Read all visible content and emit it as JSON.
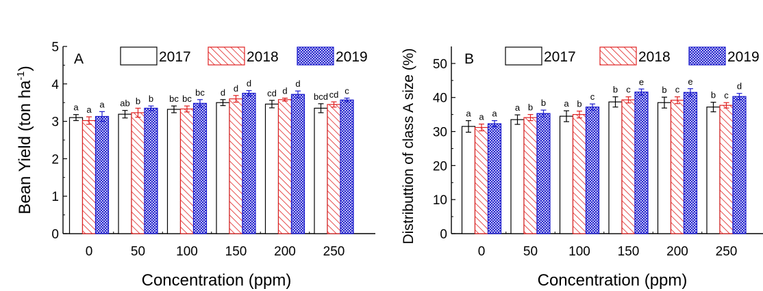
{
  "chart_data": [
    {
      "type": "bar",
      "panel_label": "A",
      "xlabel": "Concentration (ppm)",
      "ylabel": "Bean Yield (ton ha",
      "ylabel_sup": "-1",
      "ylabel_tail": ")",
      "categories": [
        "0",
        "50",
        "100",
        "150",
        "200",
        "250"
      ],
      "ylim": [
        0,
        5
      ],
      "yticks": [
        "0",
        "1",
        "2",
        "3",
        "4",
        "5"
      ],
      "legend_position": "top",
      "series": [
        {
          "name": "2017",
          "values": [
            3.1,
            3.19,
            3.32,
            3.5,
            3.46,
            3.35
          ],
          "errors": [
            0.08,
            0.1,
            0.09,
            0.08,
            0.1,
            0.12
          ],
          "letters": [
            "a",
            "ab",
            "bc",
            "d",
            "cd",
            "bcd"
          ]
        },
        {
          "name": "2018",
          "values": [
            3.02,
            3.23,
            3.33,
            3.6,
            3.58,
            3.45
          ],
          "errors": [
            0.1,
            0.12,
            0.08,
            0.09,
            0.04,
            0.07
          ],
          "letters": [
            "a",
            "b",
            "bc",
            "d",
            "d",
            "cd"
          ]
        },
        {
          "name": "2019",
          "values": [
            3.13,
            3.35,
            3.48,
            3.75,
            3.72,
            3.57
          ],
          "errors": [
            0.13,
            0.06,
            0.1,
            0.07,
            0.09,
            0.05
          ],
          "letters": [
            "a",
            "b",
            "bc",
            "d",
            "d",
            "c"
          ]
        }
      ]
    },
    {
      "type": "bar",
      "panel_label": "B",
      "xlabel": "Concentration (ppm)",
      "ylabel": "Distributtion of class A size (%)",
      "categories": [
        "0",
        "50",
        "100",
        "150",
        "200",
        "250"
      ],
      "ylim": [
        0,
        55
      ],
      "yticks": [
        "0",
        "10",
        "20",
        "30",
        "40",
        "50"
      ],
      "legend_position": "top",
      "series": [
        {
          "name": "2017",
          "values": [
            31.5,
            33.5,
            34.5,
            38.7,
            38.5,
            37.2
          ],
          "errors": [
            1.7,
            1.4,
            1.6,
            1.5,
            1.6,
            1.4
          ],
          "letters": [
            "a",
            "a",
            "a",
            "b",
            "b",
            "b"
          ]
        },
        {
          "name": "2018",
          "values": [
            31.2,
            34.1,
            35.0,
            39.3,
            39.2,
            37.7
          ],
          "errors": [
            1.0,
            0.9,
            1.0,
            0.9,
            1.0,
            0.8
          ],
          "letters": [
            "a",
            "b",
            "b",
            "c",
            "c",
            "c"
          ]
        },
        {
          "name": "2019",
          "values": [
            32.3,
            35.3,
            37.2,
            41.6,
            41.5,
            40.3
          ],
          "errors": [
            0.9,
            1.0,
            0.9,
            0.9,
            1.1,
            0.9
          ],
          "letters": [
            "a",
            "b",
            "c",
            "e",
            "e",
            "d"
          ]
        }
      ]
    }
  ],
  "colors": {
    "2017": "#000000",
    "2018": "#e02020",
    "2019": "#1a1acc"
  }
}
